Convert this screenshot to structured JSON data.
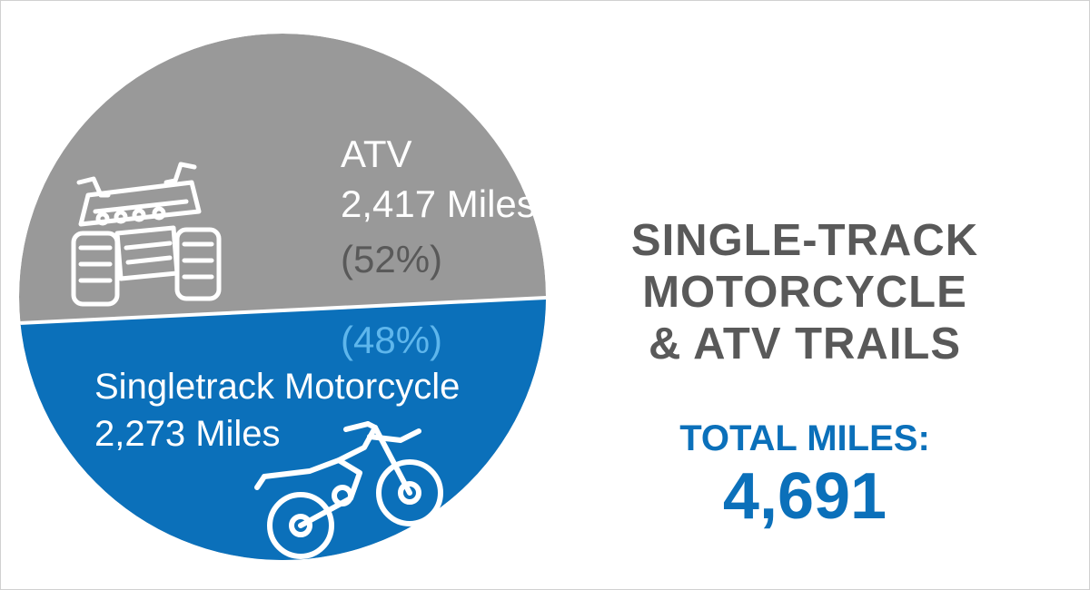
{
  "chart_data": {
    "type": "pie",
    "slices": [
      {
        "key": "atv",
        "label": "ATV",
        "value": 2417,
        "value_text": "2,417 Miles",
        "percent_text": "(52%)",
        "color": "#999999"
      },
      {
        "key": "moto",
        "label": "Singletrack Motorcycle",
        "value": 2273,
        "value_text": "2,273 Miles",
        "percent_text": "(48%)",
        "color": "#0b70ba"
      }
    ]
  },
  "title_lines": [
    "SINGLE-TRACK",
    "MOTORCYCLE",
    "& ATV TRAILS"
  ],
  "total": {
    "label": "TOTAL MILES:",
    "value": "4,691"
  },
  "icons": [
    "atv-icon",
    "dirt-bike-icon"
  ],
  "colors": {
    "atv": "#999999",
    "moto": "#0b70ba",
    "percent_atv": "#595959",
    "percent_moto": "#5eb6ec",
    "title": "#595959",
    "total": "#0b70ba",
    "slice_text": "#ffffff"
  }
}
